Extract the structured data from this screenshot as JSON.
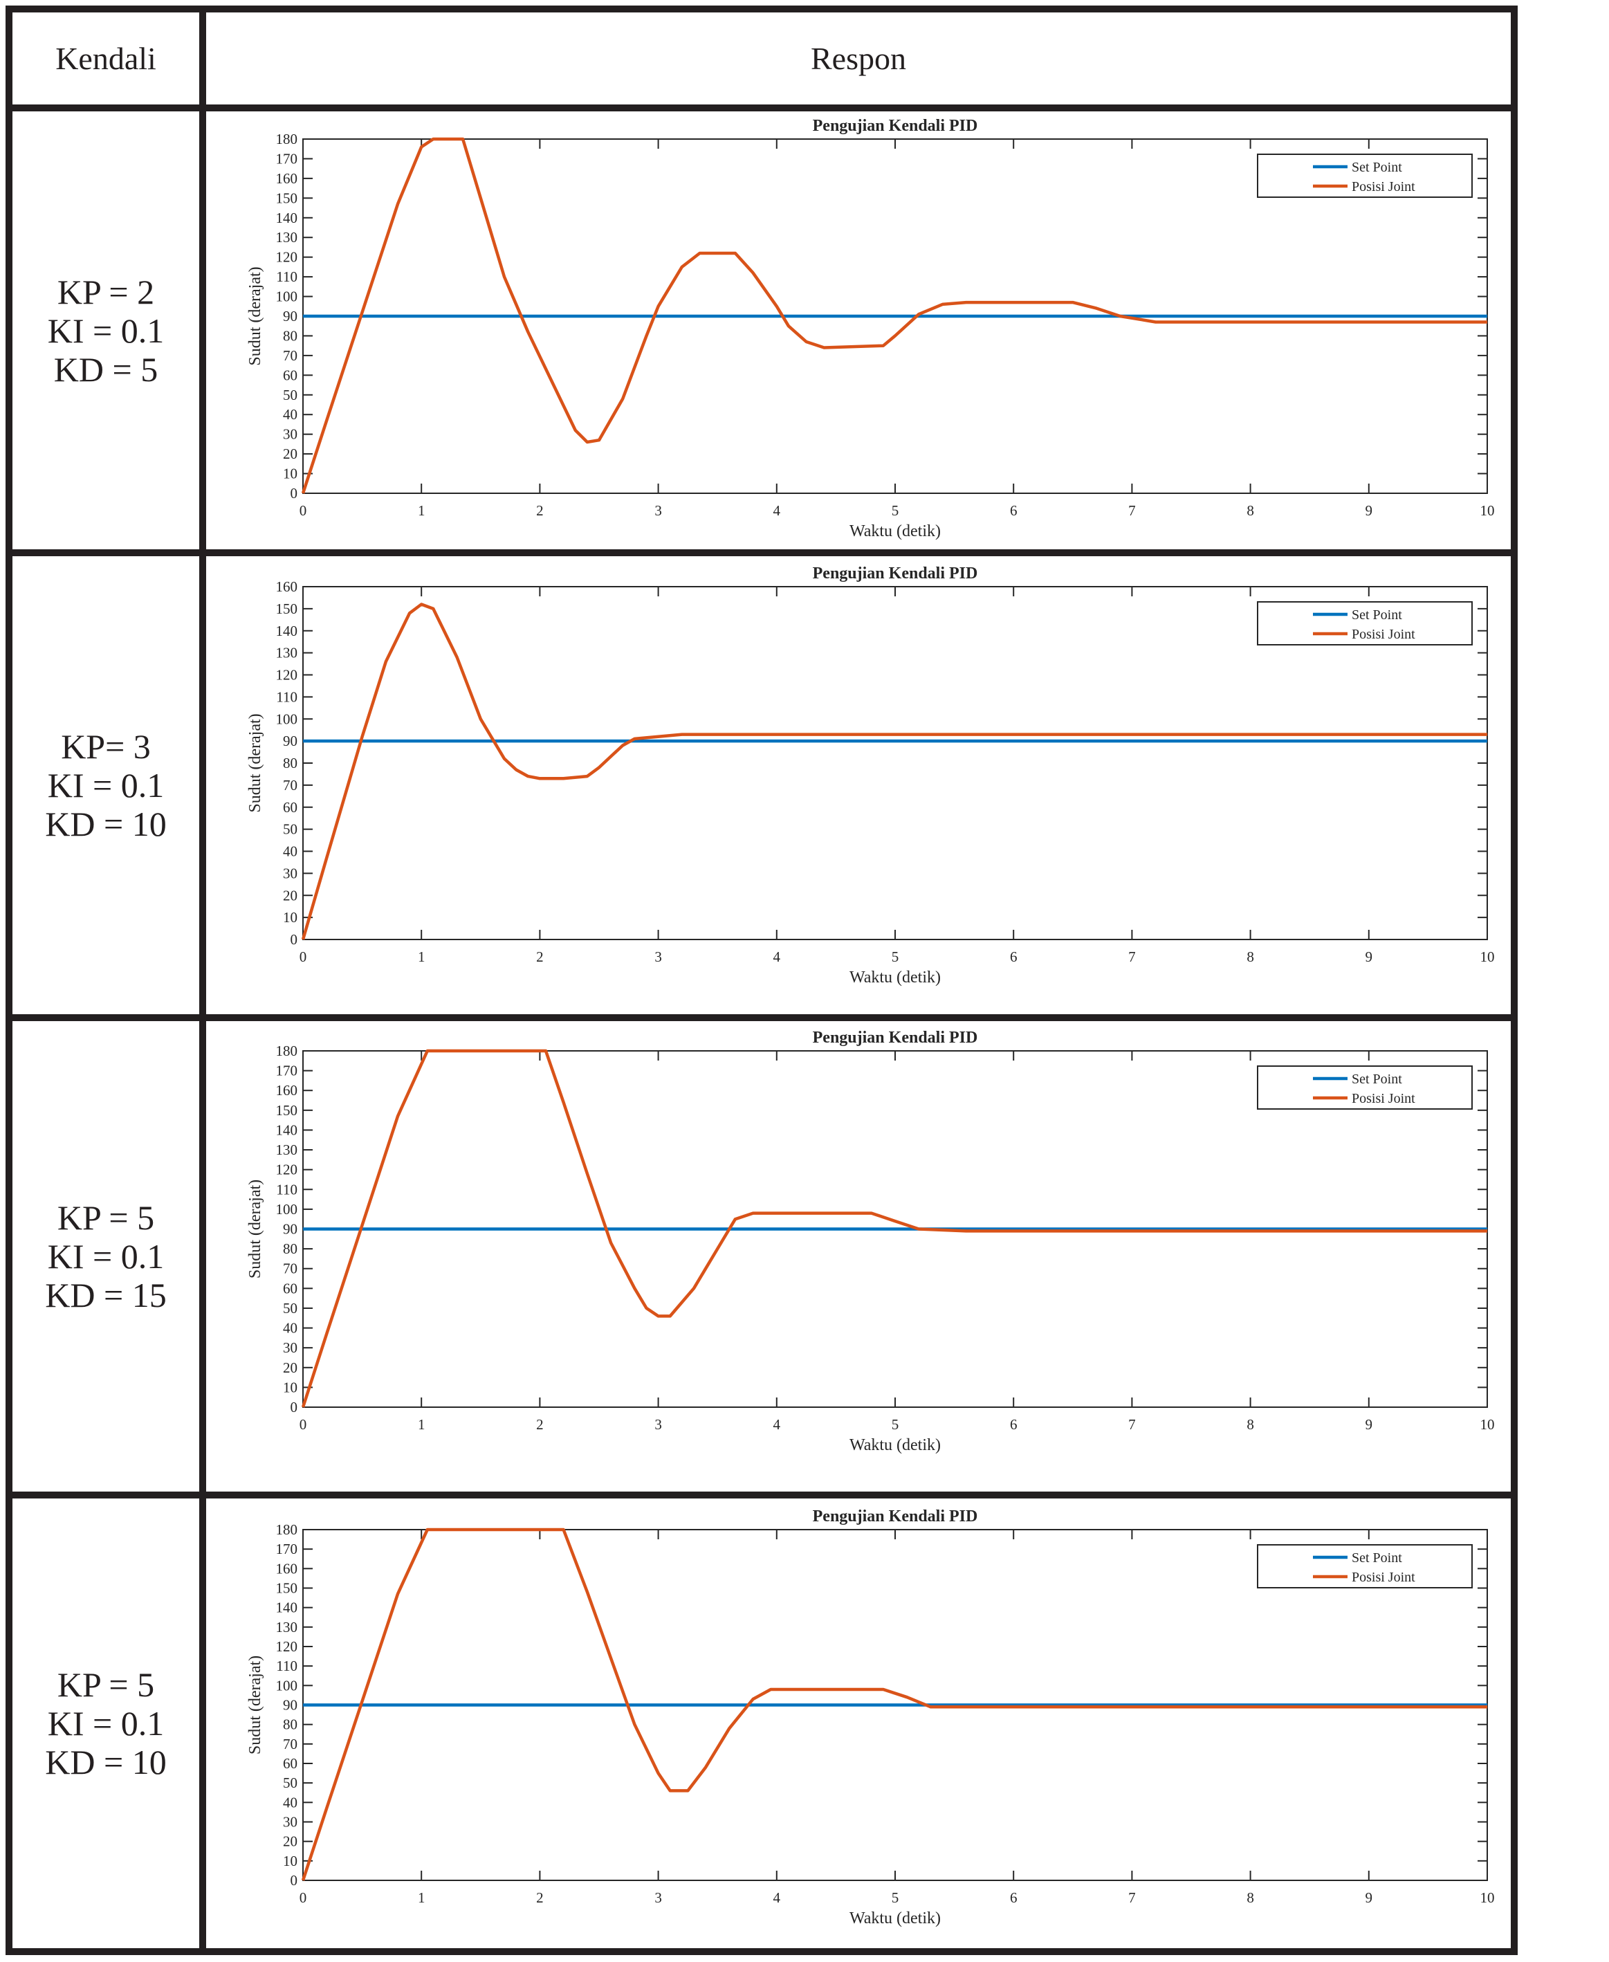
{
  "header": {
    "kendali": "Kendali",
    "respon": "Respon"
  },
  "rows": [
    {
      "params": [
        "KP = 2",
        "KI = 0.1",
        "KD = 5"
      ]
    },
    {
      "params": [
        "KP= 3",
        "KI = 0.1",
        "KD = 10"
      ]
    },
    {
      "params": [
        "KP = 5",
        "KI = 0.1",
        "KD = 15"
      ]
    },
    {
      "params": [
        "KP = 5",
        "KI = 0.1",
        "KD = 10"
      ]
    }
  ],
  "colors": {
    "set_point": "#0072bd",
    "posisi_joint": "#d95319",
    "border": "#231f20"
  },
  "chart_data": [
    {
      "type": "line",
      "title": "Pengujian Kendali PID",
      "xlabel": "Waktu (detik)",
      "ylabel": "Sudut (derajat)",
      "xlim": [
        0,
        10
      ],
      "ylim": [
        0,
        180
      ],
      "xticks": [
        0,
        1,
        2,
        3,
        4,
        5,
        6,
        7,
        8,
        9,
        10
      ],
      "yticks": [
        0,
        10,
        20,
        30,
        40,
        50,
        60,
        70,
        80,
        90,
        100,
        110,
        120,
        130,
        140,
        150,
        160,
        170,
        180
      ],
      "legend_position": "top-right",
      "grid": false,
      "series": [
        {
          "name": "Set Point",
          "x": [
            0,
            10
          ],
          "y": [
            90,
            90
          ]
        },
        {
          "name": "Posisi Joint",
          "x": [
            0,
            0.2,
            0.5,
            0.8,
            1.0,
            1.1,
            1.35,
            1.5,
            1.7,
            1.9,
            2.1,
            2.3,
            2.4,
            2.5,
            2.7,
            2.9,
            3.0,
            3.2,
            3.35,
            3.65,
            3.8,
            4.0,
            4.1,
            4.25,
            4.4,
            4.9,
            5.0,
            5.2,
            5.4,
            5.6,
            6.5,
            6.7,
            6.9,
            7.0,
            7.2,
            10
          ],
          "y": [
            0,
            37,
            92,
            147,
            176,
            180,
            180,
            150,
            110,
            82,
            57,
            32,
            26,
            27,
            48,
            80,
            95,
            115,
            122,
            122,
            112,
            95,
            85,
            77,
            74,
            75,
            80,
            91,
            96,
            97,
            97,
            94,
            90,
            89,
            87,
            87
          ]
        }
      ]
    },
    {
      "type": "line",
      "title": "Pengujian Kendali PID",
      "xlabel": "Waktu (detik)",
      "ylabel": "Sudut (derajat)",
      "xlim": [
        0,
        10
      ],
      "ylim": [
        0,
        160
      ],
      "xticks": [
        0,
        1,
        2,
        3,
        4,
        5,
        6,
        7,
        8,
        9,
        10
      ],
      "yticks": [
        0,
        10,
        20,
        30,
        40,
        50,
        60,
        70,
        80,
        90,
        100,
        110,
        120,
        130,
        140,
        150,
        160
      ],
      "legend_position": "top-right",
      "grid": false,
      "series": [
        {
          "name": "Set Point",
          "x": [
            0,
            10
          ],
          "y": [
            90,
            90
          ]
        },
        {
          "name": "Posisi Joint",
          "x": [
            0,
            0.2,
            0.5,
            0.7,
            0.9,
            1.0,
            1.1,
            1.3,
            1.5,
            1.7,
            1.8,
            1.9,
            2.0,
            2.2,
            2.4,
            2.5,
            2.6,
            2.7,
            2.8,
            3.0,
            3.2,
            3.5,
            4.0,
            10
          ],
          "y": [
            0,
            37,
            92,
            126,
            148,
            152,
            150,
            128,
            100,
            82,
            77,
            74,
            73,
            73,
            74,
            78,
            83,
            88,
            91,
            92,
            93,
            93,
            93,
            93
          ]
        }
      ]
    },
    {
      "type": "line",
      "title": "Pengujian Kendali PID",
      "xlabel": "Waktu (detik)",
      "ylabel": "Sudut (derajat)",
      "xlim": [
        0,
        10
      ],
      "ylim": [
        0,
        180
      ],
      "xticks": [
        0,
        1,
        2,
        3,
        4,
        5,
        6,
        7,
        8,
        9,
        10
      ],
      "yticks": [
        0,
        10,
        20,
        30,
        40,
        50,
        60,
        70,
        80,
        90,
        100,
        110,
        120,
        130,
        140,
        150,
        160,
        170,
        180
      ],
      "legend_position": "top-right",
      "grid": false,
      "series": [
        {
          "name": "Set Point",
          "x": [
            0,
            10
          ],
          "y": [
            90,
            90
          ]
        },
        {
          "name": "Posisi Joint",
          "x": [
            0,
            0.2,
            0.5,
            0.8,
            1.05,
            2.05,
            2.2,
            2.4,
            2.6,
            2.8,
            2.9,
            3.0,
            3.1,
            3.3,
            3.5,
            3.65,
            3.8,
            4.8,
            5.0,
            5.2,
            5.6,
            10
          ],
          "y": [
            0,
            37,
            92,
            147,
            180,
            180,
            154,
            118,
            83,
            60,
            50,
            46,
            46,
            60,
            80,
            95,
            98,
            98,
            94,
            90,
            89,
            89
          ]
        }
      ]
    },
    {
      "type": "line",
      "title": "Pengujian Kendali PID",
      "xlabel": "Waktu (detik)",
      "ylabel": "Sudut (derajat)",
      "xlim": [
        0,
        10
      ],
      "ylim": [
        0,
        180
      ],
      "xticks": [
        0,
        1,
        2,
        3,
        4,
        5,
        6,
        7,
        8,
        9,
        10
      ],
      "yticks": [
        0,
        10,
        20,
        30,
        40,
        50,
        60,
        70,
        80,
        90,
        100,
        110,
        120,
        130,
        140,
        150,
        160,
        170,
        180
      ],
      "legend_position": "top-right",
      "grid": false,
      "series": [
        {
          "name": "Set Point",
          "x": [
            0,
            10
          ],
          "y": [
            90,
            90
          ]
        },
        {
          "name": "Posisi Joint",
          "x": [
            0,
            0.2,
            0.5,
            0.8,
            1.05,
            2.2,
            2.4,
            2.6,
            2.8,
            3.0,
            3.1,
            3.25,
            3.4,
            3.6,
            3.8,
            3.95,
            4.9,
            5.1,
            5.3,
            10
          ],
          "y": [
            0,
            37,
            92,
            147,
            180,
            180,
            148,
            114,
            80,
            55,
            46,
            46,
            58,
            78,
            93,
            98,
            98,
            94,
            89,
            89
          ]
        }
      ]
    }
  ]
}
